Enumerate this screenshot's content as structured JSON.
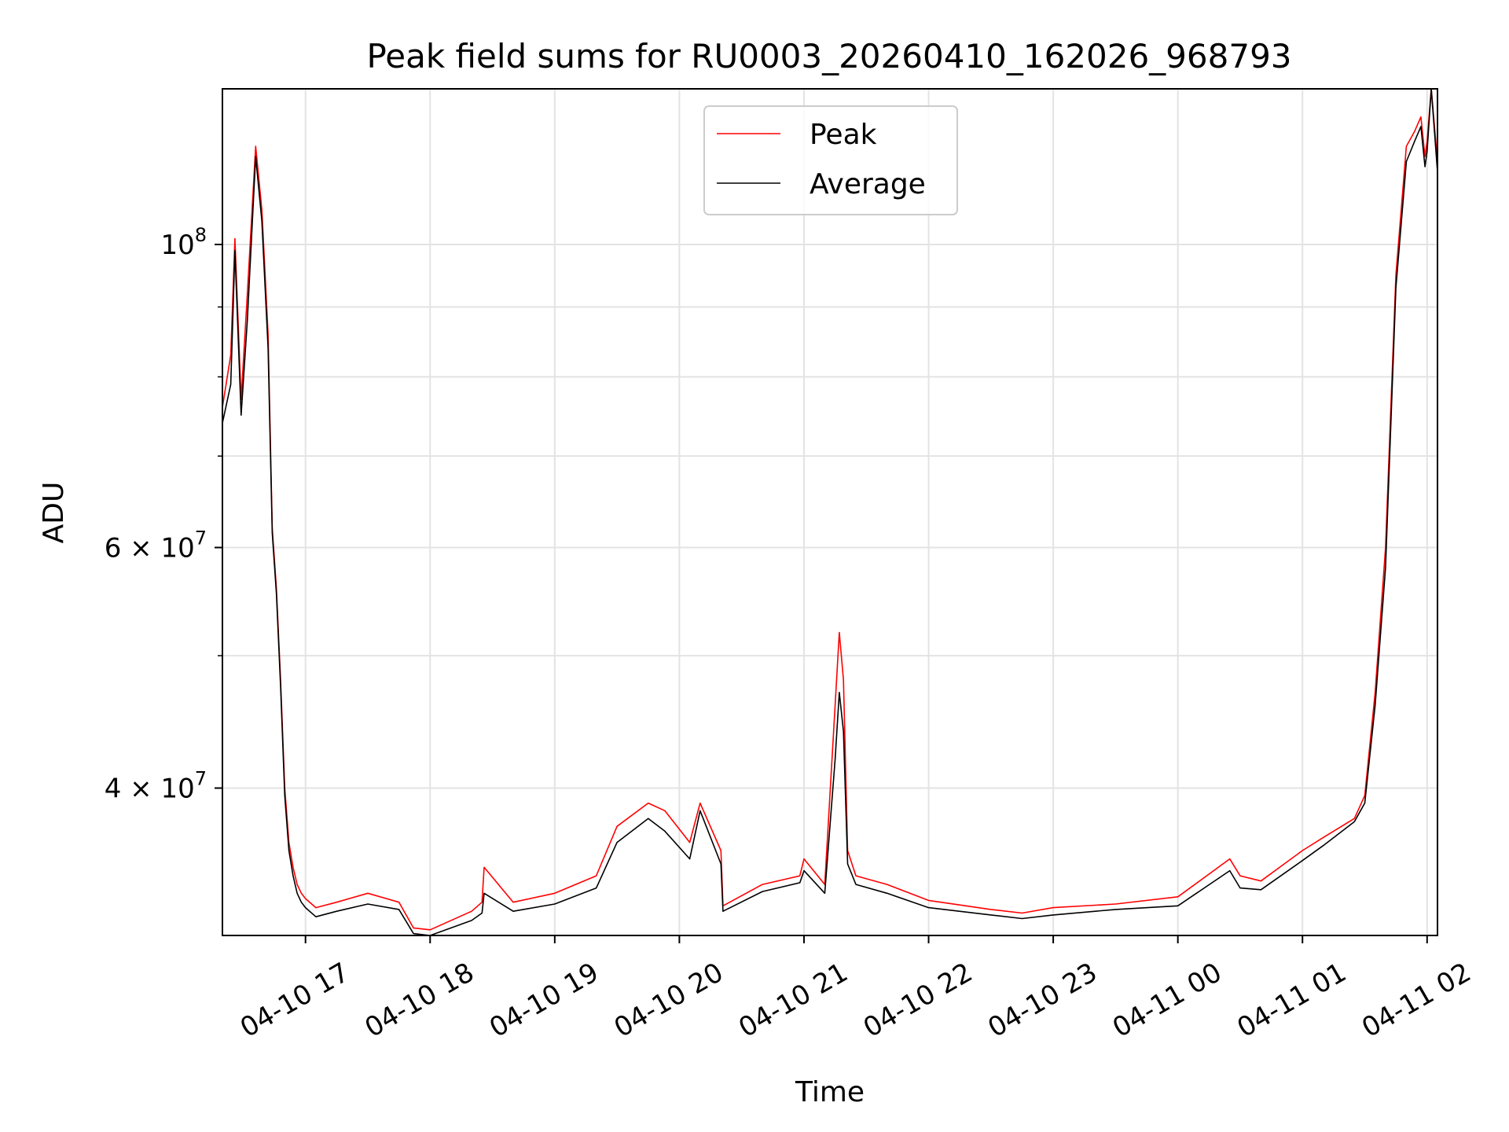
{
  "chart_data": {
    "type": "line",
    "title": "Peak field sums for RU0003_20260410_162026_968793",
    "xlabel": "Time",
    "ylabel": "ADU",
    "yscale": "log",
    "grid": true,
    "legend_placement": "upper-center",
    "xlim": [
      "2026-04-10 16:20",
      "2026-04-11 02:05"
    ],
    "ylim": [
      31200000,
      130000000
    ],
    "x_ticks": [
      {
        "value": "2026-04-10 17:00",
        "label": "04-10 17"
      },
      {
        "value": "2026-04-10 18:00",
        "label": "04-10 18"
      },
      {
        "value": "2026-04-10 19:00",
        "label": "04-10 19"
      },
      {
        "value": "2026-04-10 20:00",
        "label": "04-10 20"
      },
      {
        "value": "2026-04-10 21:00",
        "label": "04-10 21"
      },
      {
        "value": "2026-04-10 22:00",
        "label": "04-10 22"
      },
      {
        "value": "2026-04-10 23:00",
        "label": "04-10 23"
      },
      {
        "value": "2026-04-11 00:00",
        "label": "04-11 00"
      },
      {
        "value": "2026-04-11 01:00",
        "label": "04-11 01"
      },
      {
        "value": "2026-04-11 02:00",
        "label": "04-11 02"
      }
    ],
    "y_major_ticks": [
      {
        "value": 40000000,
        "label_mantissa": "4",
        "label_base": "10",
        "label_exp": "7"
      },
      {
        "value": 60000000,
        "label_mantissa": "6",
        "label_base": "10",
        "label_exp": "7"
      },
      {
        "value": 100000000,
        "label_mantissa": "",
        "label_base": "10",
        "label_exp": "8"
      }
    ],
    "y_minor_ticks": [
      50000000,
      70000000,
      80000000,
      90000000
    ],
    "series": [
      {
        "name": "Peak",
        "color": "#ff0000",
        "x": [
          "2026-04-10 16:20",
          "2026-04-10 16:24",
          "2026-04-10 16:26",
          "2026-04-10 16:29",
          "2026-04-10 16:32",
          "2026-04-10 16:36",
          "2026-04-10 16:39",
          "2026-04-10 16:42",
          "2026-04-10 16:44",
          "2026-04-10 16:46",
          "2026-04-10 16:48",
          "2026-04-10 16:50",
          "2026-04-10 16:52",
          "2026-04-10 16:54",
          "2026-04-10 16:56",
          "2026-04-10 16:58",
          "2026-04-10 17:00",
          "2026-04-10 17:05",
          "2026-04-10 17:15",
          "2026-04-10 17:30",
          "2026-04-10 17:45",
          "2026-04-10 17:52",
          "2026-04-10 18:00",
          "2026-04-10 18:20",
          "2026-04-10 18:25",
          "2026-04-10 18:26",
          "2026-04-10 18:40",
          "2026-04-10 19:00",
          "2026-04-10 19:20",
          "2026-04-10 19:30",
          "2026-04-10 19:45",
          "2026-04-10 19:53",
          "2026-04-10 20:05",
          "2026-04-10 20:10",
          "2026-04-10 20:20",
          "2026-04-10 20:21",
          "2026-04-10 20:40",
          "2026-04-10 20:58",
          "2026-04-10 21:00",
          "2026-04-10 21:10",
          "2026-04-10 21:15",
          "2026-04-10 21:17",
          "2026-04-10 21:19",
          "2026-04-10 21:21",
          "2026-04-10 21:25",
          "2026-04-10 21:40",
          "2026-04-10 22:00",
          "2026-04-10 22:30",
          "2026-04-10 22:45",
          "2026-04-10 23:00",
          "2026-04-10 23:30",
          "2026-04-11 00:00",
          "2026-04-11 00:25",
          "2026-04-11 00:30",
          "2026-04-11 00:40",
          "2026-04-11 01:00",
          "2026-04-11 01:10",
          "2026-04-11 01:25",
          "2026-04-11 01:30",
          "2026-04-11 01:35",
          "2026-04-11 01:40",
          "2026-04-11 01:45",
          "2026-04-11 01:50",
          "2026-04-11 01:54",
          "2026-04-11 01:57",
          "2026-04-11 01:59",
          "2026-04-11 02:00",
          "2026-04-11 02:02",
          "2026-04-11 02:05"
        ],
        "values": [
          76000000,
          83000000,
          101000000,
          77000000,
          92000000,
          118000000,
          106000000,
          86000000,
          62000000,
          56000000,
          48000000,
          40000000,
          36500000,
          35000000,
          34000000,
          33500000,
          33200000,
          32700000,
          33000000,
          33500000,
          33000000,
          31600000,
          31500000,
          32500000,
          33000000,
          35000000,
          33000000,
          33500000,
          34500000,
          37500000,
          39000000,
          38500000,
          36500000,
          39000000,
          36000000,
          32800000,
          34000000,
          34500000,
          35500000,
          34000000,
          46000000,
          52000000,
          48000000,
          36000000,
          34500000,
          34000000,
          33100000,
          32600000,
          32400000,
          32700000,
          32900000,
          33300000,
          35500000,
          34500000,
          34200000,
          36000000,
          36800000,
          38000000,
          39500000,
          47000000,
          60000000,
          95000000,
          118000000,
          121000000,
          124000000,
          116000000,
          119000000,
          135000000,
          115000000
        ]
      },
      {
        "name": "Average",
        "color": "#000000",
        "x": [
          "2026-04-10 16:20",
          "2026-04-10 16:24",
          "2026-04-10 16:26",
          "2026-04-10 16:29",
          "2026-04-10 16:32",
          "2026-04-10 16:36",
          "2026-04-10 16:39",
          "2026-04-10 16:42",
          "2026-04-10 16:44",
          "2026-04-10 16:46",
          "2026-04-10 16:48",
          "2026-04-10 16:50",
          "2026-04-10 16:52",
          "2026-04-10 16:54",
          "2026-04-10 16:56",
          "2026-04-10 16:58",
          "2026-04-10 17:00",
          "2026-04-10 17:05",
          "2026-04-10 17:15",
          "2026-04-10 17:30",
          "2026-04-10 17:45",
          "2026-04-10 17:52",
          "2026-04-10 18:00",
          "2026-04-10 18:20",
          "2026-04-10 18:25",
          "2026-04-10 18:26",
          "2026-04-10 18:40",
          "2026-04-10 19:00",
          "2026-04-10 19:20",
          "2026-04-10 19:30",
          "2026-04-10 19:45",
          "2026-04-10 19:53",
          "2026-04-10 20:05",
          "2026-04-10 20:10",
          "2026-04-10 20:20",
          "2026-04-10 20:21",
          "2026-04-10 20:40",
          "2026-04-10 20:58",
          "2026-04-10 21:00",
          "2026-04-10 21:10",
          "2026-04-10 21:15",
          "2026-04-10 21:17",
          "2026-04-10 21:19",
          "2026-04-10 21:21",
          "2026-04-10 21:25",
          "2026-04-10 21:40",
          "2026-04-10 22:00",
          "2026-04-10 22:30",
          "2026-04-10 22:45",
          "2026-04-10 23:00",
          "2026-04-10 23:30",
          "2026-04-11 00:00",
          "2026-04-11 00:25",
          "2026-04-11 00:30",
          "2026-04-11 00:40",
          "2026-04-11 01:00",
          "2026-04-11 01:10",
          "2026-04-11 01:25",
          "2026-04-11 01:30",
          "2026-04-11 01:35",
          "2026-04-11 01:40",
          "2026-04-11 01:45",
          "2026-04-11 01:50",
          "2026-04-11 01:54",
          "2026-04-11 01:57",
          "2026-04-11 01:59",
          "2026-04-11 02:00",
          "2026-04-11 02:02",
          "2026-04-11 02:05"
        ],
        "values": [
          74000000,
          79000000,
          99000000,
          75000000,
          88000000,
          116000000,
          104000000,
          84000000,
          61500000,
          55500000,
          47500000,
          39500000,
          36000000,
          34500000,
          33500000,
          33000000,
          32700000,
          32200000,
          32500000,
          32900000,
          32600000,
          31300000,
          31200000,
          32000000,
          32400000,
          33500000,
          32500000,
          32900000,
          33800000,
          36500000,
          38000000,
          37200000,
          35500000,
          38500000,
          35200000,
          32500000,
          33600000,
          34100000,
          34800000,
          33500000,
          42000000,
          47000000,
          44000000,
          35200000,
          34000000,
          33500000,
          32700000,
          32300000,
          32100000,
          32300000,
          32600000,
          32800000,
          34800000,
          33800000,
          33700000,
          35400000,
          36300000,
          37800000,
          39000000,
          46000000,
          58000000,
          93000000,
          115000000,
          119000000,
          122000000,
          114000000,
          117000000,
          133000000,
          113000000
        ]
      }
    ]
  }
}
